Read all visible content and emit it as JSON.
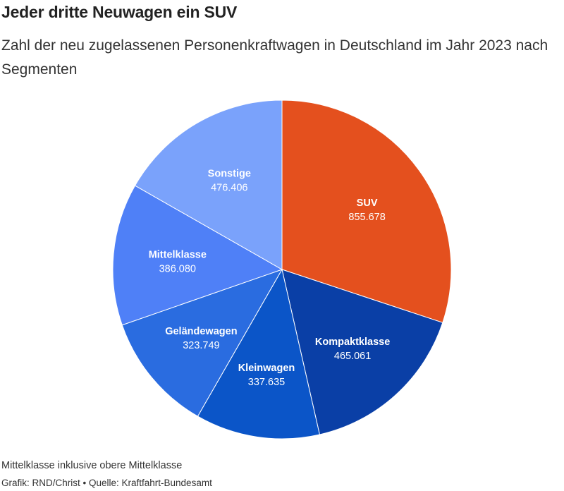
{
  "header": {
    "title": "Jeder dritte Neuwagen ein SUV",
    "subtitle": "Zahl der neu zugelassenen Personenkraftwagen in Deutschland im Jahr 2023 nach Segmenten"
  },
  "footer": {
    "note": "Mittelklasse inklusive obere Mittelklasse",
    "source": "Grafik: RND/Christ • Quelle: Kraftfahrt-Bundesamt"
  },
  "chart_data": {
    "type": "pie",
    "title": "Jeder dritte Neuwagen ein SUV",
    "subtitle": "Zahl der neu zugelassenen Personenkraftwagen in Deutschland im Jahr 2023 nach Segmenten",
    "slices": [
      {
        "label": "SUV",
        "value": 855678,
        "display": "855.678",
        "color": "#e4501e"
      },
      {
        "label": "Kompaktklasse",
        "value": 465061,
        "display": "465.061",
        "color": "#0a3fa6"
      },
      {
        "label": "Kleinwagen",
        "value": 337635,
        "display": "337.635",
        "color": "#0b55c8"
      },
      {
        "label": "Geländewagen",
        "value": 323749,
        "display": "323.749",
        "color": "#2a6ce0"
      },
      {
        "label": "Mittelklasse",
        "value": 386080,
        "display": "386.080",
        "color": "#4f80f7"
      },
      {
        "label": "Sonstige",
        "value": 476406,
        "display": "476.406",
        "color": "#7aa2fb"
      }
    ]
  }
}
